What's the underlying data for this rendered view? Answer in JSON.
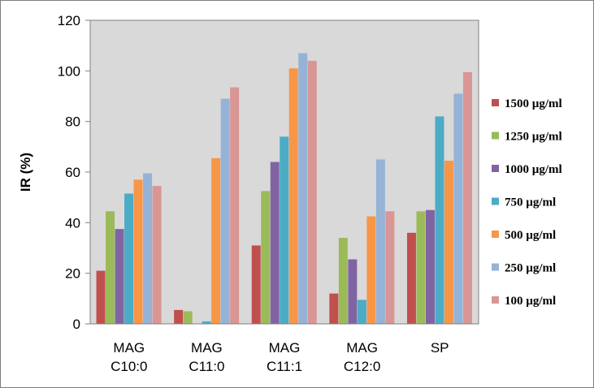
{
  "chart_data": {
    "type": "bar",
    "title": "",
    "xlabel": "",
    "ylabel": "IR (%)",
    "ylim": [
      0,
      120
    ],
    "yticks": [
      0,
      20,
      40,
      60,
      80,
      100,
      120
    ],
    "grid": false,
    "legend_position": "right",
    "categories": [
      [
        "MAG",
        "C10:0"
      ],
      [
        "MAG",
        "C11:0"
      ],
      [
        "MAG",
        "C11:1"
      ],
      [
        "MAG",
        "C12:0"
      ],
      [
        "SP"
      ]
    ],
    "series": [
      {
        "name": "1500 µg/ml",
        "color": "#c0504d",
        "values": [
          21,
          5.5,
          31,
          12,
          36
        ]
      },
      {
        "name": "1250 µg/ml",
        "color": "#9bbb59",
        "values": [
          44.5,
          5,
          52.5,
          34,
          44.5
        ]
      },
      {
        "name": "1000 µg/ml",
        "color": "#8064a2",
        "values": [
          37.5,
          0,
          64,
          25.5,
          45
        ]
      },
      {
        "name": "750 µg/ml",
        "color": "#4bacc6",
        "values": [
          51.5,
          1,
          74,
          9.5,
          82
        ]
      },
      {
        "name": "500 µg/ml",
        "color": "#f79646",
        "values": [
          57,
          65.5,
          101,
          42.5,
          64.5
        ]
      },
      {
        "name": "250 µg/ml",
        "color": "#95b3d7",
        "values": [
          59.5,
          89,
          107,
          65,
          91
        ]
      },
      {
        "name": "100 µg/ml",
        "color": "#d99694",
        "values": [
          54.5,
          93.5,
          104,
          44.5,
          99.5
        ]
      }
    ]
  }
}
